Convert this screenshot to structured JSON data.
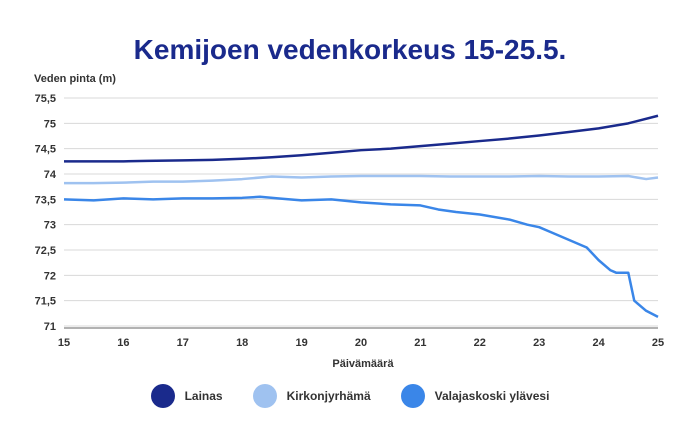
{
  "chart_data": {
    "type": "line",
    "title": "Kemijoen vedenkorkeus 15-25.5.",
    "ylabel": "Veden pinta (m)",
    "xlabel": "Päivämäärä",
    "xlim": [
      15,
      25
    ],
    "ylim": [
      71,
      75.5
    ],
    "xticks": [
      "15",
      "16",
      "17",
      "18",
      "19",
      "20",
      "21",
      "22",
      "23",
      "24",
      "25"
    ],
    "yticks": [
      "75,5",
      "75",
      "74,5",
      "74",
      "73,5",
      "73",
      "72,5",
      "72",
      "71,5",
      "71"
    ],
    "grid": "horizontal",
    "legend_position": "bottom",
    "series": [
      {
        "name": "Lainas",
        "color": "#1a2a8c",
        "x": [
          15,
          16,
          16.4,
          17,
          17.5,
          18,
          18.5,
          19,
          19.5,
          20,
          20.5,
          21,
          21.5,
          22,
          22.5,
          23,
          23.5,
          24,
          24.5,
          25
        ],
        "y": [
          74.25,
          74.25,
          74.26,
          74.27,
          74.28,
          74.3,
          74.33,
          74.37,
          74.42,
          74.47,
          74.5,
          74.55,
          74.6,
          74.65,
          74.7,
          74.76,
          74.83,
          74.9,
          75.0,
          75.15
        ]
      },
      {
        "name": "Kirkonjyrhämä",
        "color": "#9fc2f0",
        "x": [
          15,
          15.5,
          16,
          16.5,
          17,
          17.5,
          18,
          18.5,
          19,
          19.5,
          20,
          20.5,
          21,
          21.5,
          22,
          22.5,
          23,
          23.5,
          24,
          24.5,
          24.8,
          25
        ],
        "y": [
          73.82,
          73.82,
          73.83,
          73.85,
          73.85,
          73.87,
          73.9,
          73.95,
          73.93,
          73.95,
          73.96,
          73.96,
          73.96,
          73.95,
          73.95,
          73.95,
          73.96,
          73.95,
          73.95,
          73.96,
          73.9,
          73.93
        ]
      },
      {
        "name": "Valajaskoski ylävesi",
        "color": "#3a86e8",
        "x": [
          15,
          15.5,
          16,
          16.5,
          17,
          17.5,
          18,
          18.3,
          18.6,
          19,
          19.5,
          20,
          20.5,
          21,
          21.3,
          21.6,
          22,
          22.5,
          22.8,
          23,
          23.2,
          23.5,
          23.8,
          24,
          24.2,
          24.3,
          24.5,
          24.6,
          24.8,
          25
        ],
        "y": [
          73.5,
          73.48,
          73.52,
          73.5,
          73.52,
          73.52,
          73.53,
          73.55,
          73.52,
          73.48,
          73.5,
          73.44,
          73.4,
          73.38,
          73.3,
          73.25,
          73.2,
          73.1,
          73.0,
          72.95,
          72.85,
          72.7,
          72.55,
          72.3,
          72.1,
          72.05,
          72.05,
          71.5,
          71.3,
          71.18
        ]
      }
    ]
  }
}
